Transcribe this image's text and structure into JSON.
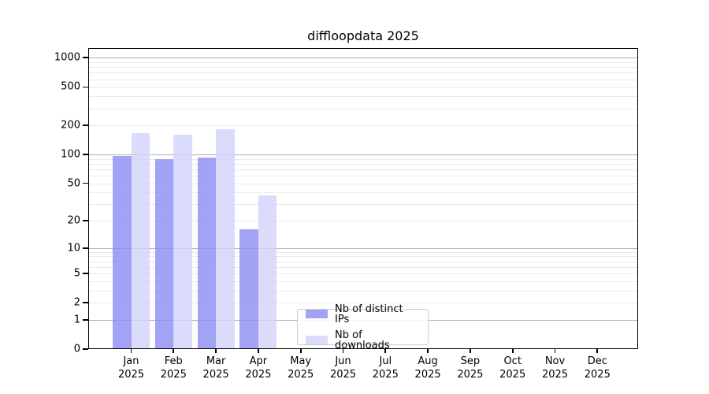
{
  "title": "diffloopdata 2025",
  "chart_data": {
    "type": "bar",
    "title": "diffloopdata 2025",
    "categories": [
      "Jan",
      "Feb",
      "Mar",
      "Apr",
      "May",
      "Jun",
      "Jul",
      "Aug",
      "Sep",
      "Oct",
      "Nov",
      "Dec"
    ],
    "year_label": "2025",
    "series": [
      {
        "name": "Nb of distinct IPs",
        "color": "rgba(140,140,244,0.8)",
        "values": [
          96,
          90,
          93,
          16,
          0,
          0,
          0,
          0,
          0,
          0,
          0,
          0
        ]
      },
      {
        "name": "Nb of downloads",
        "color": "rgba(210,210,250,0.8)",
        "values": [
          166,
          161,
          184,
          37,
          0,
          0,
          0,
          0,
          0,
          0,
          0,
          0
        ]
      }
    ],
    "y_ticks": [
      0,
      1,
      2,
      5,
      10,
      20,
      50,
      100,
      200,
      500,
      1000
    ],
    "y_major_grid": [
      1,
      10,
      100,
      1000
    ],
    "y_minor_grid": [
      2,
      3,
      4,
      5,
      6,
      7,
      8,
      9,
      20,
      30,
      40,
      50,
      60,
      70,
      80,
      90,
      200,
      300,
      400,
      500,
      600,
      700,
      800,
      900
    ],
    "scale": "log1p",
    "ylim": [
      0,
      1259
    ],
    "grid": "horizontal",
    "legend_position": "lower-center"
  },
  "colors": {
    "distinct_ips_bar": "rgba(140,140,244,0.8)",
    "downloads_bar": "rgba(210,210,250,0.8)",
    "major_grid": "#b0b0b0",
    "minor_grid": "#ebebeb",
    "axis": "#000000",
    "legend_border": "#cccccc"
  }
}
